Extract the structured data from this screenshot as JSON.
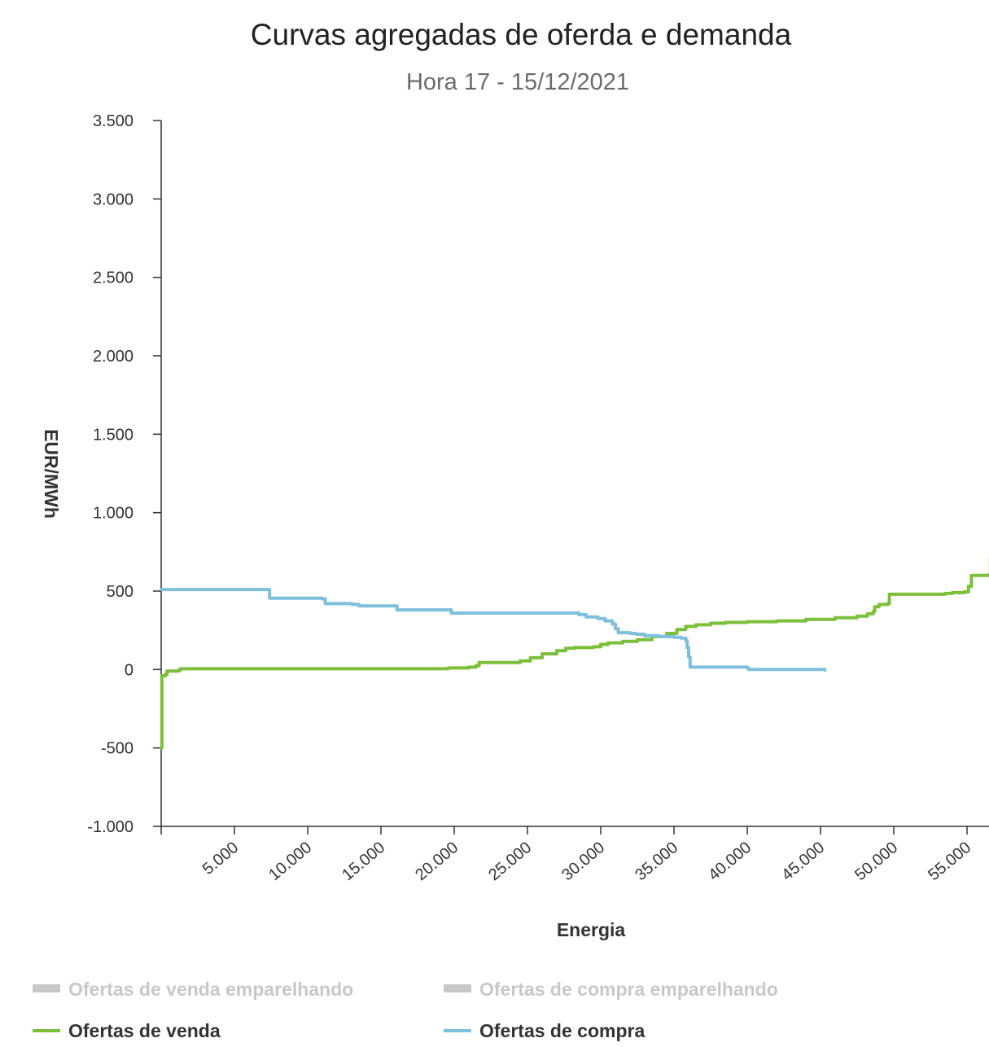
{
  "chart_data": {
    "type": "line",
    "title": "Curvas agregadas de oferda e demanda",
    "subtitle": "Hora 17 - 15/12/2021",
    "xlabel": "Energia",
    "ylabel": "EUR/MWh",
    "xlim": [
      0,
      56500
    ],
    "ylim": [
      -1000,
      3500
    ],
    "x_ticks": [
      5000,
      10000,
      15000,
      20000,
      25000,
      30000,
      35000,
      40000,
      45000,
      50000,
      55000
    ],
    "x_tick_labels": [
      "5.000",
      "10.000",
      "15.000",
      "20.000",
      "25.000",
      "30.000",
      "35.000",
      "40.000",
      "45.000",
      "50.000",
      "55.000"
    ],
    "y_ticks": [
      -1000,
      -500,
      0,
      500,
      1000,
      1500,
      2000,
      2500,
      3000,
      3500
    ],
    "y_tick_labels": [
      "-1.000",
      "-500",
      "0",
      "500",
      "1.000",
      "1.500",
      "2.000",
      "2.500",
      "3.000",
      "3.500"
    ],
    "grid": false,
    "legend_position": "bottom-left",
    "legend": [
      {
        "label": "Ofertas de venda emparelhando",
        "color": "#c8c8c8",
        "marker": "bar",
        "active": false
      },
      {
        "label": "Ofertas de compra emparelhando",
        "color": "#c8c8c8",
        "marker": "bar",
        "active": false
      },
      {
        "label": "Ofertas de venda",
        "color": "#7cbf3a",
        "marker": "line",
        "active": true
      },
      {
        "label": "Ofertas de compra",
        "color": "#7ec0dc",
        "marker": "line",
        "active": true
      }
    ],
    "series": [
      {
        "name": "Ofertas de venda",
        "color": "#7cbf3a",
        "points": [
          [
            0,
            -500
          ],
          [
            50,
            -40
          ],
          [
            300,
            -30
          ],
          [
            400,
            -10
          ],
          [
            1200,
            -5
          ],
          [
            1300,
            5
          ],
          [
            19500,
            5
          ],
          [
            19600,
            10
          ],
          [
            21000,
            15
          ],
          [
            21500,
            25
          ],
          [
            21700,
            45
          ],
          [
            24500,
            55
          ],
          [
            25200,
            75
          ],
          [
            26000,
            100
          ],
          [
            27000,
            120
          ],
          [
            27600,
            135
          ],
          [
            28200,
            140
          ],
          [
            29500,
            145
          ],
          [
            30000,
            160
          ],
          [
            30500,
            170
          ],
          [
            31500,
            180
          ],
          [
            32500,
            190
          ],
          [
            33500,
            210
          ],
          [
            34500,
            230
          ],
          [
            35200,
            255
          ],
          [
            35800,
            275
          ],
          [
            36500,
            285
          ],
          [
            37500,
            295
          ],
          [
            38500,
            300
          ],
          [
            40000,
            305
          ],
          [
            42000,
            310
          ],
          [
            44000,
            320
          ],
          [
            46000,
            330
          ],
          [
            47500,
            340
          ],
          [
            48200,
            355
          ],
          [
            48600,
            370
          ],
          [
            48700,
            400
          ],
          [
            49000,
            415
          ],
          [
            49600,
            420
          ],
          [
            49700,
            480
          ],
          [
            52000,
            480
          ],
          [
            53500,
            485
          ],
          [
            54000,
            490
          ],
          [
            54800,
            495
          ],
          [
            55100,
            530
          ],
          [
            55300,
            600
          ],
          [
            56500,
            605
          ],
          [
            56600,
            710
          ],
          [
            57000,
            710
          ]
        ]
      },
      {
        "name": "Ofertas de compra",
        "color": "#7ec0dc",
        "points": [
          [
            0,
            510
          ],
          [
            7300,
            510
          ],
          [
            7400,
            455
          ],
          [
            10500,
            455
          ],
          [
            11000,
            450
          ],
          [
            11200,
            420
          ],
          [
            13000,
            415
          ],
          [
            13500,
            405
          ],
          [
            16000,
            405
          ],
          [
            16100,
            380
          ],
          [
            19500,
            380
          ],
          [
            19800,
            360
          ],
          [
            28000,
            360
          ],
          [
            28500,
            350
          ],
          [
            29000,
            335
          ],
          [
            29800,
            325
          ],
          [
            30300,
            310
          ],
          [
            30800,
            290
          ],
          [
            31000,
            260
          ],
          [
            31200,
            235
          ],
          [
            32000,
            230
          ],
          [
            32400,
            225
          ],
          [
            33000,
            215
          ],
          [
            34000,
            210
          ],
          [
            35000,
            205
          ],
          [
            35500,
            200
          ],
          [
            35800,
            185
          ],
          [
            35900,
            140
          ],
          [
            36000,
            80
          ],
          [
            36100,
            15
          ],
          [
            40000,
            10
          ],
          [
            40100,
            0
          ],
          [
            45000,
            0
          ],
          [
            45300,
            -5
          ]
        ]
      }
    ]
  }
}
